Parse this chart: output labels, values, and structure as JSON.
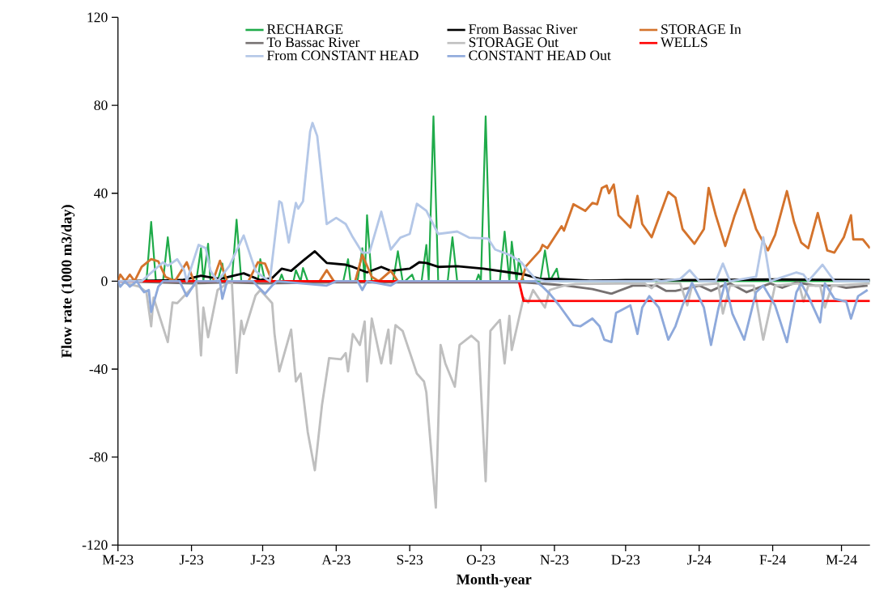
{
  "chart_data": {
    "type": "line",
    "xlabel": "Month-year",
    "ylabel": "Flow rate (1000 m3/day)",
    "xlim": [
      "2023-05-01",
      "2024-03-13"
    ],
    "xticks": [
      {
        "value": "2023-05-01",
        "label": "M-23"
      },
      {
        "value": "2023-06-01",
        "label": "J-23"
      },
      {
        "value": "2023-07-01",
        "label": "J-23"
      },
      {
        "value": "2023-08-01",
        "label": "A-23"
      },
      {
        "value": "2023-09-01",
        "label": "S-23"
      },
      {
        "value": "2023-10-01",
        "label": "O-23"
      },
      {
        "value": "2023-11-01",
        "label": "N-23"
      },
      {
        "value": "2023-12-01",
        "label": "D-23"
      },
      {
        "value": "2024-01-01",
        "label": "J-24"
      },
      {
        "value": "2024-02-01",
        "label": "F-24"
      },
      {
        "value": "2024-03-01",
        "label": "M-24"
      }
    ],
    "ylim": [
      -120,
      120
    ],
    "yticks": [
      -120,
      -80,
      -40,
      0,
      40,
      80,
      120
    ],
    "legend": "top",
    "grid": false,
    "series": [
      {
        "name": "RECHARGE",
        "color": "#1fab4a",
        "x": [
          "2023-05-01",
          "2023-05-13",
          "2023-05-15",
          "2023-05-17",
          "2023-05-20",
          "2023-05-22",
          "2023-05-24",
          "2023-06-03",
          "2023-06-05",
          "2023-06-06",
          "2023-06-08",
          "2023-06-09",
          "2023-06-12",
          "2023-06-14",
          "2023-06-15",
          "2023-06-18",
          "2023-06-20",
          "2023-06-22",
          "2023-06-29",
          "2023-06-30",
          "2023-07-02",
          "2023-07-08",
          "2023-07-09",
          "2023-07-10",
          "2023-07-14",
          "2023-07-15",
          "2023-07-17",
          "2023-07-18",
          "2023-07-20",
          "2023-08-04",
          "2023-08-06",
          "2023-08-07",
          "2023-08-10",
          "2023-08-12",
          "2023-08-13",
          "2023-08-14",
          "2023-08-16",
          "2023-08-25",
          "2023-08-27",
          "2023-08-29",
          "2023-08-30",
          "2023-09-02",
          "2023-09-03",
          "2023-09-06",
          "2023-09-08",
          "2023-09-09",
          "2023-09-11",
          "2023-09-13",
          "2023-09-17",
          "2023-09-19",
          "2023-09-21",
          "2023-09-29",
          "2023-09-30",
          "2023-10-01",
          "2023-10-03",
          "2023-10-05",
          "2023-10-09",
          "2023-10-11",
          "2023-10-13",
          "2023-10-14",
          "2023-10-16",
          "2023-10-17",
          "2023-10-19",
          "2023-10-26",
          "2023-10-28",
          "2023-10-30",
          "2023-11-02",
          "2023-11-03",
          "2024-03-13"
        ],
        "values": [
          0,
          0,
          27,
          0,
          0,
          20,
          0,
          0,
          15,
          0,
          17,
          0,
          0,
          8,
          0,
          0,
          28,
          0,
          0,
          10,
          0,
          0,
          3,
          0,
          0,
          5,
          0,
          6,
          0,
          0,
          10,
          0,
          0,
          15,
          0,
          30,
          0,
          0,
          13.6,
          0,
          0,
          3,
          0,
          0,
          16.5,
          0,
          75,
          0,
          0,
          20,
          0,
          0,
          3,
          0,
          75,
          0,
          0,
          22.6,
          0,
          18,
          0,
          10,
          0,
          0,
          14,
          0,
          5.7,
          0,
          0
        ]
      },
      {
        "name": "From Bassac River",
        "color": "#000000",
        "x": [
          "2023-05-01",
          "2023-05-16",
          "2023-05-28",
          "2023-06-05",
          "2023-06-13",
          "2023-06-23",
          "2023-06-30",
          "2023-07-05",
          "2023-07-09",
          "2023-07-13",
          "2023-07-18",
          "2023-07-23",
          "2023-07-28",
          "2023-08-05",
          "2023-08-08",
          "2023-08-14",
          "2023-08-20",
          "2023-08-24",
          "2023-09-01",
          "2023-09-05",
          "2023-09-08",
          "2023-09-13",
          "2023-09-21",
          "2023-10-02",
          "2023-10-13",
          "2023-10-20",
          "2023-10-26",
          "2023-11-03",
          "2023-11-16",
          "2023-12-01",
          "2024-01-01",
          "2024-02-01",
          "2024-03-13"
        ],
        "values": [
          0,
          0.3,
          0.5,
          2.5,
          1,
          3.6,
          0.5,
          1.4,
          5.7,
          4.7,
          9.3,
          13.6,
          8.3,
          7.5,
          6.5,
          4,
          6.5,
          4.7,
          5.7,
          8.6,
          8.3,
          6.5,
          6.8,
          5.7,
          4,
          2.9,
          1,
          1,
          0.3,
          0.5,
          0.5,
          0.8,
          0.5
        ]
      },
      {
        "name": "STORAGE In",
        "color": "#d4732c",
        "x": [
          "2023-05-01",
          "2023-05-02",
          "2023-05-04",
          "2023-05-06",
          "2023-05-08",
          "2023-05-11",
          "2023-05-15",
          "2023-05-18",
          "2023-05-21",
          "2023-05-25",
          "2023-05-30",
          "2023-06-02",
          "2023-06-10",
          "2023-06-13",
          "2023-06-16",
          "2023-06-25",
          "2023-06-29",
          "2023-07-02",
          "2023-07-05",
          "2023-07-25",
          "2023-07-28",
          "2023-07-31",
          "2023-08-09",
          "2023-08-12",
          "2023-08-16",
          "2023-08-19",
          "2023-08-24",
          "2023-08-27",
          "2023-10-18",
          "2023-10-20",
          "2023-10-23",
          "2023-10-26",
          "2023-10-27",
          "2023-10-29",
          "2023-11-01",
          "2023-11-04",
          "2023-11-05",
          "2023-11-09",
          "2023-11-14",
          "2023-11-17",
          "2023-11-19",
          "2023-11-21",
          "2023-11-23",
          "2023-11-24",
          "2023-11-26",
          "2023-11-28",
          "2023-12-03",
          "2023-12-06",
          "2023-12-08",
          "2023-12-12",
          "2023-12-19",
          "2023-12-22",
          "2023-12-25",
          "2023-12-30",
          "2024-01-03",
          "2024-01-05",
          "2024-01-08",
          "2024-01-12",
          "2024-01-16",
          "2024-01-20",
          "2024-01-25",
          "2024-01-30",
          "2024-02-02",
          "2024-02-07",
          "2024-02-10",
          "2024-02-13",
          "2024-02-16",
          "2024-02-20",
          "2024-02-24",
          "2024-02-27",
          "2024-03-02",
          "2024-03-05",
          "2024-03-06",
          "2024-03-10",
          "2024-03-13"
        ],
        "values": [
          0,
          3,
          0,
          3,
          0,
          6.5,
          10,
          9,
          2,
          0,
          8.6,
          0,
          0,
          9.3,
          0,
          0,
          8.6,
          8,
          0,
          0,
          5,
          0,
          0,
          12,
          2,
          0,
          4.7,
          0,
          0,
          6.8,
          10.4,
          14,
          16.5,
          15,
          20,
          25,
          23,
          35,
          32,
          35.6,
          35,
          42.4,
          43.5,
          40,
          44,
          30,
          24.4,
          38.8,
          26,
          20,
          40.6,
          38,
          23.7,
          17,
          23.7,
          42.4,
          30,
          16,
          30,
          41.7,
          23.7,
          14,
          21,
          41,
          27,
          17.6,
          15,
          31,
          14,
          13,
          20,
          30,
          19,
          19,
          15
        ]
      },
      {
        "name": "To Bassac River",
        "color": "#767171",
        "x": [
          "2023-05-01",
          "2023-06-01",
          "2023-06-16",
          "2023-07-01",
          "2023-08-01",
          "2023-09-01",
          "2023-10-01",
          "2023-10-19",
          "2023-11-01",
          "2023-11-06",
          "2023-11-17",
          "2023-11-25",
          "2023-12-04",
          "2023-12-14",
          "2023-12-18",
          "2023-12-22",
          "2024-01-01",
          "2024-01-06",
          "2024-01-11",
          "2024-01-14",
          "2024-01-21",
          "2024-01-31",
          "2024-02-05",
          "2024-02-11",
          "2024-02-19",
          "2024-02-28",
          "2024-03-03",
          "2024-03-12"
        ],
        "values": [
          0,
          -1,
          -0.5,
          -1,
          -0.5,
          -0.5,
          -0.5,
          -0.5,
          -1.5,
          -2,
          -3.6,
          -5.7,
          -2,
          -2,
          -4.4,
          -4.4,
          -2,
          -4.4,
          -2,
          -1,
          -5,
          -1,
          -3,
          -0.5,
          -2,
          -2,
          -3,
          -2
        ]
      },
      {
        "name": "STORAGE Out",
        "color": "#bfbfbf",
        "x": [
          "2023-05-01",
          "2023-05-10",
          "2023-05-13",
          "2023-05-15",
          "2023-05-16",
          "2023-05-22",
          "2023-05-24",
          "2023-05-26",
          "2023-06-03",
          "2023-06-05",
          "2023-06-06",
          "2023-06-08",
          "2023-06-12",
          "2023-06-16",
          "2023-06-18",
          "2023-06-20",
          "2023-06-22",
          "2023-06-23",
          "2023-06-28",
          "2023-06-30",
          "2023-07-05",
          "2023-07-06",
          "2023-07-08",
          "2023-07-13",
          "2023-07-15",
          "2023-07-17",
          "2023-07-20",
          "2023-07-23",
          "2023-07-26",
          "2023-07-29",
          "2023-08-03",
          "2023-08-05",
          "2023-08-06",
          "2023-08-08",
          "2023-08-11",
          "2023-08-13",
          "2023-08-14",
          "2023-08-16",
          "2023-08-20",
          "2023-08-23",
          "2023-08-24",
          "2023-08-26",
          "2023-08-29",
          "2023-09-04",
          "2023-09-07",
          "2023-09-08",
          "2023-09-12",
          "2023-09-14",
          "2023-09-16",
          "2023-09-20",
          "2023-09-22",
          "2023-09-27",
          "2023-09-30",
          "2023-10-03",
          "2023-10-05",
          "2023-10-09",
          "2023-10-11",
          "2023-10-13",
          "2023-10-14",
          "2023-10-17",
          "2023-10-19",
          "2023-10-21",
          "2023-10-23",
          "2023-10-28",
          "2023-10-30",
          "2023-11-05",
          "2023-11-10",
          "2023-12-09",
          "2023-12-12",
          "2023-12-14",
          "2023-12-24",
          "2023-12-27",
          "2023-12-29",
          "2024-01-09",
          "2024-01-11",
          "2024-01-14",
          "2024-01-24",
          "2024-01-28",
          "2024-02-02",
          "2024-02-12",
          "2024-02-14",
          "2024-02-16",
          "2024-02-21",
          "2024-02-23",
          "2024-02-26",
          "2024-03-13"
        ],
        "values": [
          0,
          -2.5,
          -5,
          -20.5,
          -7.5,
          -27.7,
          -9.7,
          -10,
          -1,
          -33.8,
          -12,
          -25.5,
          -4,
          -1,
          0,
          -41.7,
          -18,
          -24,
          -6.5,
          -4,
          -10,
          -24,
          -41,
          -22,
          -45.6,
          -42,
          -68.6,
          -86,
          -56.4,
          -35,
          -35.5,
          -32.7,
          -41,
          -24,
          -29,
          -18.3,
          -45.6,
          -17,
          -37.4,
          -22,
          -37.4,
          -20,
          -22.6,
          -42,
          -45.6,
          -50.6,
          -103,
          -29,
          -37.4,
          -48,
          -29,
          -24.8,
          -27.7,
          -91,
          -22.6,
          -17.6,
          -37.4,
          -15.8,
          -31.3,
          -17,
          -7.5,
          -9.7,
          -4,
          -12,
          -4,
          -2,
          -1.3,
          -1,
          -3.2,
          -1,
          -1,
          -11,
          -2,
          -1,
          -14.7,
          -2,
          -2,
          -26.6,
          -2,
          -1,
          -9.3,
          -2,
          -2,
          -12,
          -2,
          -1
        ]
      },
      {
        "name": "WELLS",
        "color": "#ff0000",
        "x": [
          "2023-05-01",
          "2023-10-17",
          "2023-10-19",
          "2024-03-13"
        ],
        "values": [
          0,
          0,
          -9,
          -9
        ]
      },
      {
        "name": "From CONSTANT HEAD",
        "color": "#b4c7e7",
        "x": [
          "2023-05-01",
          "2023-05-11",
          "2023-05-20",
          "2023-05-22",
          "2023-05-26",
          "2023-05-29",
          "2023-05-30",
          "2023-06-04",
          "2023-06-07",
          "2023-06-09",
          "2023-06-12",
          "2023-06-17",
          "2023-06-23",
          "2023-06-28",
          "2023-07-01",
          "2023-07-04",
          "2023-07-08",
          "2023-07-09",
          "2023-07-12",
          "2023-07-15",
          "2023-07-16",
          "2023-07-18",
          "2023-07-21",
          "2023-07-22",
          "2023-07-24",
          "2023-07-28",
          "2023-08-01",
          "2023-08-05",
          "2023-08-08",
          "2023-08-12",
          "2023-08-15",
          "2023-08-20",
          "2023-08-24",
          "2023-08-28",
          "2023-09-01",
          "2023-09-04",
          "2023-09-08",
          "2023-09-13",
          "2023-09-21",
          "2023-09-26",
          "2023-10-04",
          "2023-10-07",
          "2023-10-13",
          "2023-10-18",
          "2023-10-21",
          "2023-10-24",
          "2023-10-28",
          "2023-12-12",
          "2023-12-14",
          "2023-12-16",
          "2023-12-24",
          "2023-12-28",
          "2024-01-01",
          "2024-01-08",
          "2024-01-11",
          "2024-01-14",
          "2024-01-25",
          "2024-01-28",
          "2024-01-31",
          "2024-02-11",
          "2024-02-14",
          "2024-02-16",
          "2024-02-22",
          "2024-02-25",
          "2024-02-27",
          "2024-03-13"
        ],
        "values": [
          0,
          0,
          8.6,
          7,
          10,
          4.7,
          0,
          16.5,
          15,
          4.7,
          0,
          7,
          20.8,
          4.7,
          2,
          0,
          36.3,
          35.6,
          17.6,
          35.6,
          33,
          36.3,
          68,
          72,
          66,
          26,
          28.8,
          26,
          20,
          13,
          13,
          31.6,
          14.4,
          19.8,
          21.5,
          35.2,
          32,
          21.5,
          22.6,
          19.8,
          19.4,
          14.4,
          12,
          8.6,
          4.7,
          1,
          0,
          0,
          0.5,
          0,
          1,
          5,
          0,
          0,
          8,
          0,
          2,
          20,
          0,
          4,
          3,
          0,
          7.5,
          3,
          0,
          0
        ]
      },
      {
        "name": "CONSTANT HEAD Out",
        "color": "#8ea9db",
        "x": [
          "2023-05-01",
          "2023-05-02",
          "2023-05-04",
          "2023-05-06",
          "2023-05-09",
          "2023-05-11",
          "2023-05-12",
          "2023-05-14",
          "2023-05-15",
          "2023-05-18",
          "2023-05-20",
          "2023-05-27",
          "2023-05-30",
          "2023-06-03",
          "2023-06-13",
          "2023-06-14",
          "2023-06-16",
          "2023-06-27",
          "2023-06-29",
          "2023-07-02",
          "2023-07-05",
          "2023-07-07",
          "2023-07-28",
          "2023-08-01",
          "2023-08-10",
          "2023-08-12",
          "2023-08-14",
          "2023-08-24",
          "2023-08-27",
          "2023-10-24",
          "2023-10-27",
          "2023-10-30",
          "2023-11-03",
          "2023-11-05",
          "2023-11-09",
          "2023-11-12",
          "2023-11-17",
          "2023-11-20",
          "2023-11-22",
          "2023-11-25",
          "2023-11-27",
          "2023-12-03",
          "2023-12-06",
          "2023-12-08",
          "2023-12-11",
          "2023-12-15",
          "2023-12-19",
          "2023-12-22",
          "2023-12-25",
          "2023-12-29",
          "2024-01-03",
          "2024-01-06",
          "2024-01-09",
          "2024-01-12",
          "2024-01-15",
          "2024-01-20",
          "2024-01-25",
          "2024-01-28",
          "2024-02-02",
          "2024-02-07",
          "2024-02-11",
          "2024-02-13",
          "2024-02-16",
          "2024-02-21",
          "2024-02-23",
          "2024-02-27",
          "2024-03-03",
          "2024-03-05",
          "2024-03-08",
          "2024-03-12"
        ],
        "values": [
          0,
          -2.5,
          0,
          -2.5,
          0,
          -3.6,
          -5,
          -4,
          -14,
          -2.5,
          0,
          0,
          -6.8,
          0,
          0,
          -8,
          0,
          0,
          -2.5,
          -5.7,
          -2,
          0,
          -2,
          0,
          0,
          -4,
          0,
          -2,
          0,
          0,
          -2.5,
          -5.7,
          -11,
          -14,
          -20,
          -20.5,
          -17,
          -20.5,
          -26.6,
          -27.7,
          -14.4,
          -11,
          -24,
          -12,
          -6.8,
          -12,
          -26.6,
          -20.5,
          -11,
          -0.7,
          -12,
          -29,
          -13,
          -0.5,
          -14.7,
          -26.6,
          -5,
          -2,
          -11,
          -27.7,
          -5,
          -1,
          -6.8,
          -18.7,
          -1,
          -8,
          -9.3,
          -17,
          -6.8,
          -4
        ]
      }
    ]
  }
}
